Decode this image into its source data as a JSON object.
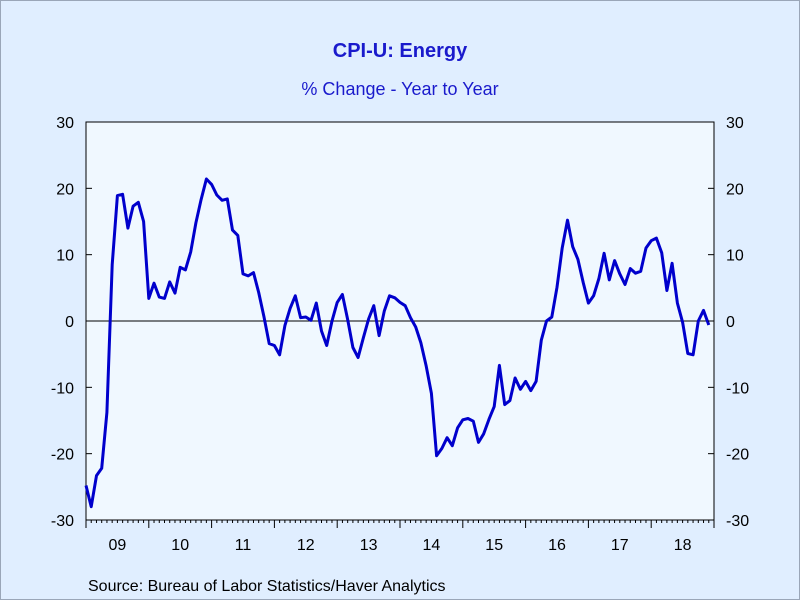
{
  "chart_data": {
    "type": "line",
    "title": "CPI-U: Energy",
    "subtitle": "% Change - Year to Year",
    "source": "Source:  Bureau of Labor Statistics/Haver Analytics",
    "ylim": [
      -30,
      30
    ],
    "yticks": [
      "30",
      "20",
      "10",
      "0",
      "-10",
      "-20",
      "-30"
    ],
    "ytick_values": [
      30,
      20,
      10,
      0,
      -10,
      -20,
      -30
    ],
    "xlim": [
      2009.0,
      2019.0
    ],
    "xticks": [
      "09",
      "10",
      "11",
      "12",
      "13",
      "14",
      "15",
      "16",
      "17",
      "18"
    ],
    "xtick_values": [
      2009.0,
      2010.0,
      2011.0,
      2012.0,
      2013.0,
      2014.0,
      2015.0,
      2016.0,
      2017.0,
      2018.0
    ],
    "grid": false,
    "zero_line": true,
    "line_color": "#0000CC",
    "series": [
      {
        "x": [
          2009.0,
          2009.083,
          2009.167,
          2009.25,
          2009.333,
          2009.417,
          2009.5,
          2009.583,
          2009.667,
          2009.75,
          2009.833,
          2009.917,
          2010.0,
          2010.083,
          2010.167,
          2010.25,
          2010.333,
          2010.417,
          2010.5,
          2010.583,
          2010.667,
          2010.75,
          2010.833,
          2010.917,
          2011.0,
          2011.083,
          2011.167,
          2011.25,
          2011.333,
          2011.417,
          2011.5,
          2011.583,
          2011.667,
          2011.75,
          2011.833,
          2011.917,
          2012.0,
          2012.083,
          2012.167,
          2012.25,
          2012.333,
          2012.417,
          2012.5,
          2012.583,
          2012.667,
          2012.75,
          2012.833,
          2012.917,
          2013.0,
          2013.083,
          2013.167,
          2013.25,
          2013.333,
          2013.417,
          2013.5,
          2013.583,
          2013.667,
          2013.75,
          2013.833,
          2013.917,
          2014.0,
          2014.083,
          2014.167,
          2014.25,
          2014.333,
          2014.417,
          2014.5,
          2014.583,
          2014.667,
          2014.75,
          2014.833,
          2014.917,
          2015.0,
          2015.083,
          2015.167,
          2015.25,
          2015.333,
          2015.417,
          2015.5,
          2015.583,
          2015.667,
          2015.75,
          2015.833,
          2015.917,
          2016.0,
          2016.083,
          2016.167,
          2016.25,
          2016.333,
          2016.417,
          2016.5,
          2016.583,
          2016.667,
          2016.75,
          2016.833,
          2016.917,
          2017.0,
          2017.083,
          2017.167,
          2017.25,
          2017.333,
          2017.417,
          2017.5,
          2017.583,
          2017.667,
          2017.75,
          2017.833,
          2017.917,
          2018.0,
          2018.083,
          2018.167,
          2018.25,
          2018.333,
          2018.417,
          2018.5,
          2018.583,
          2018.667,
          2018.75,
          2018.833,
          2018.917
        ],
        "values": [
          -24.8,
          -28.0,
          -23.3,
          -22.2,
          -13.8,
          8.5,
          18.9,
          19.1,
          14.0,
          17.3,
          17.9,
          15.0,
          3.4,
          5.7,
          3.6,
          3.4,
          5.9,
          4.2,
          8.1,
          7.7,
          10.4,
          14.8,
          18.3,
          21.4,
          20.6,
          19.0,
          18.2,
          18.4,
          13.7,
          12.9,
          7.1,
          6.8,
          7.3,
          4.3,
          0.7,
          -3.4,
          -3.7,
          -5.1,
          -0.7,
          1.9,
          3.8,
          0.5,
          0.6,
          0.1,
          2.7,
          -1.5,
          -3.7,
          0.0,
          2.8,
          4.0,
          0.2,
          -4.0,
          -5.5,
          -2.5,
          0.3,
          2.3,
          -2.2,
          1.5,
          3.8,
          3.5,
          2.8,
          2.3,
          0.5,
          -0.9,
          -3.3,
          -6.8,
          -10.9,
          -20.3,
          -19.2,
          -17.6,
          -18.8,
          -16.1,
          -14.9,
          -14.7,
          -15.1,
          -18.3,
          -17.0,
          -14.8,
          -12.9,
          -6.7,
          -12.6,
          -12.0,
          -8.6,
          -10.3,
          -9.1,
          -10.5,
          -9.1,
          -2.9,
          0.0,
          0.6,
          5.1,
          11.0,
          15.2,
          11.2,
          9.3,
          5.8,
          2.7,
          3.8,
          6.4,
          10.2,
          6.2,
          9.1,
          7.1,
          5.5,
          7.9,
          7.2,
          7.5,
          11.0,
          12.1,
          12.5,
          10.3,
          4.6,
          8.7,
          2.7,
          -0.2,
          -4.9,
          -5.1,
          0.0,
          1.6,
          -0.6
        ]
      }
    ]
  }
}
